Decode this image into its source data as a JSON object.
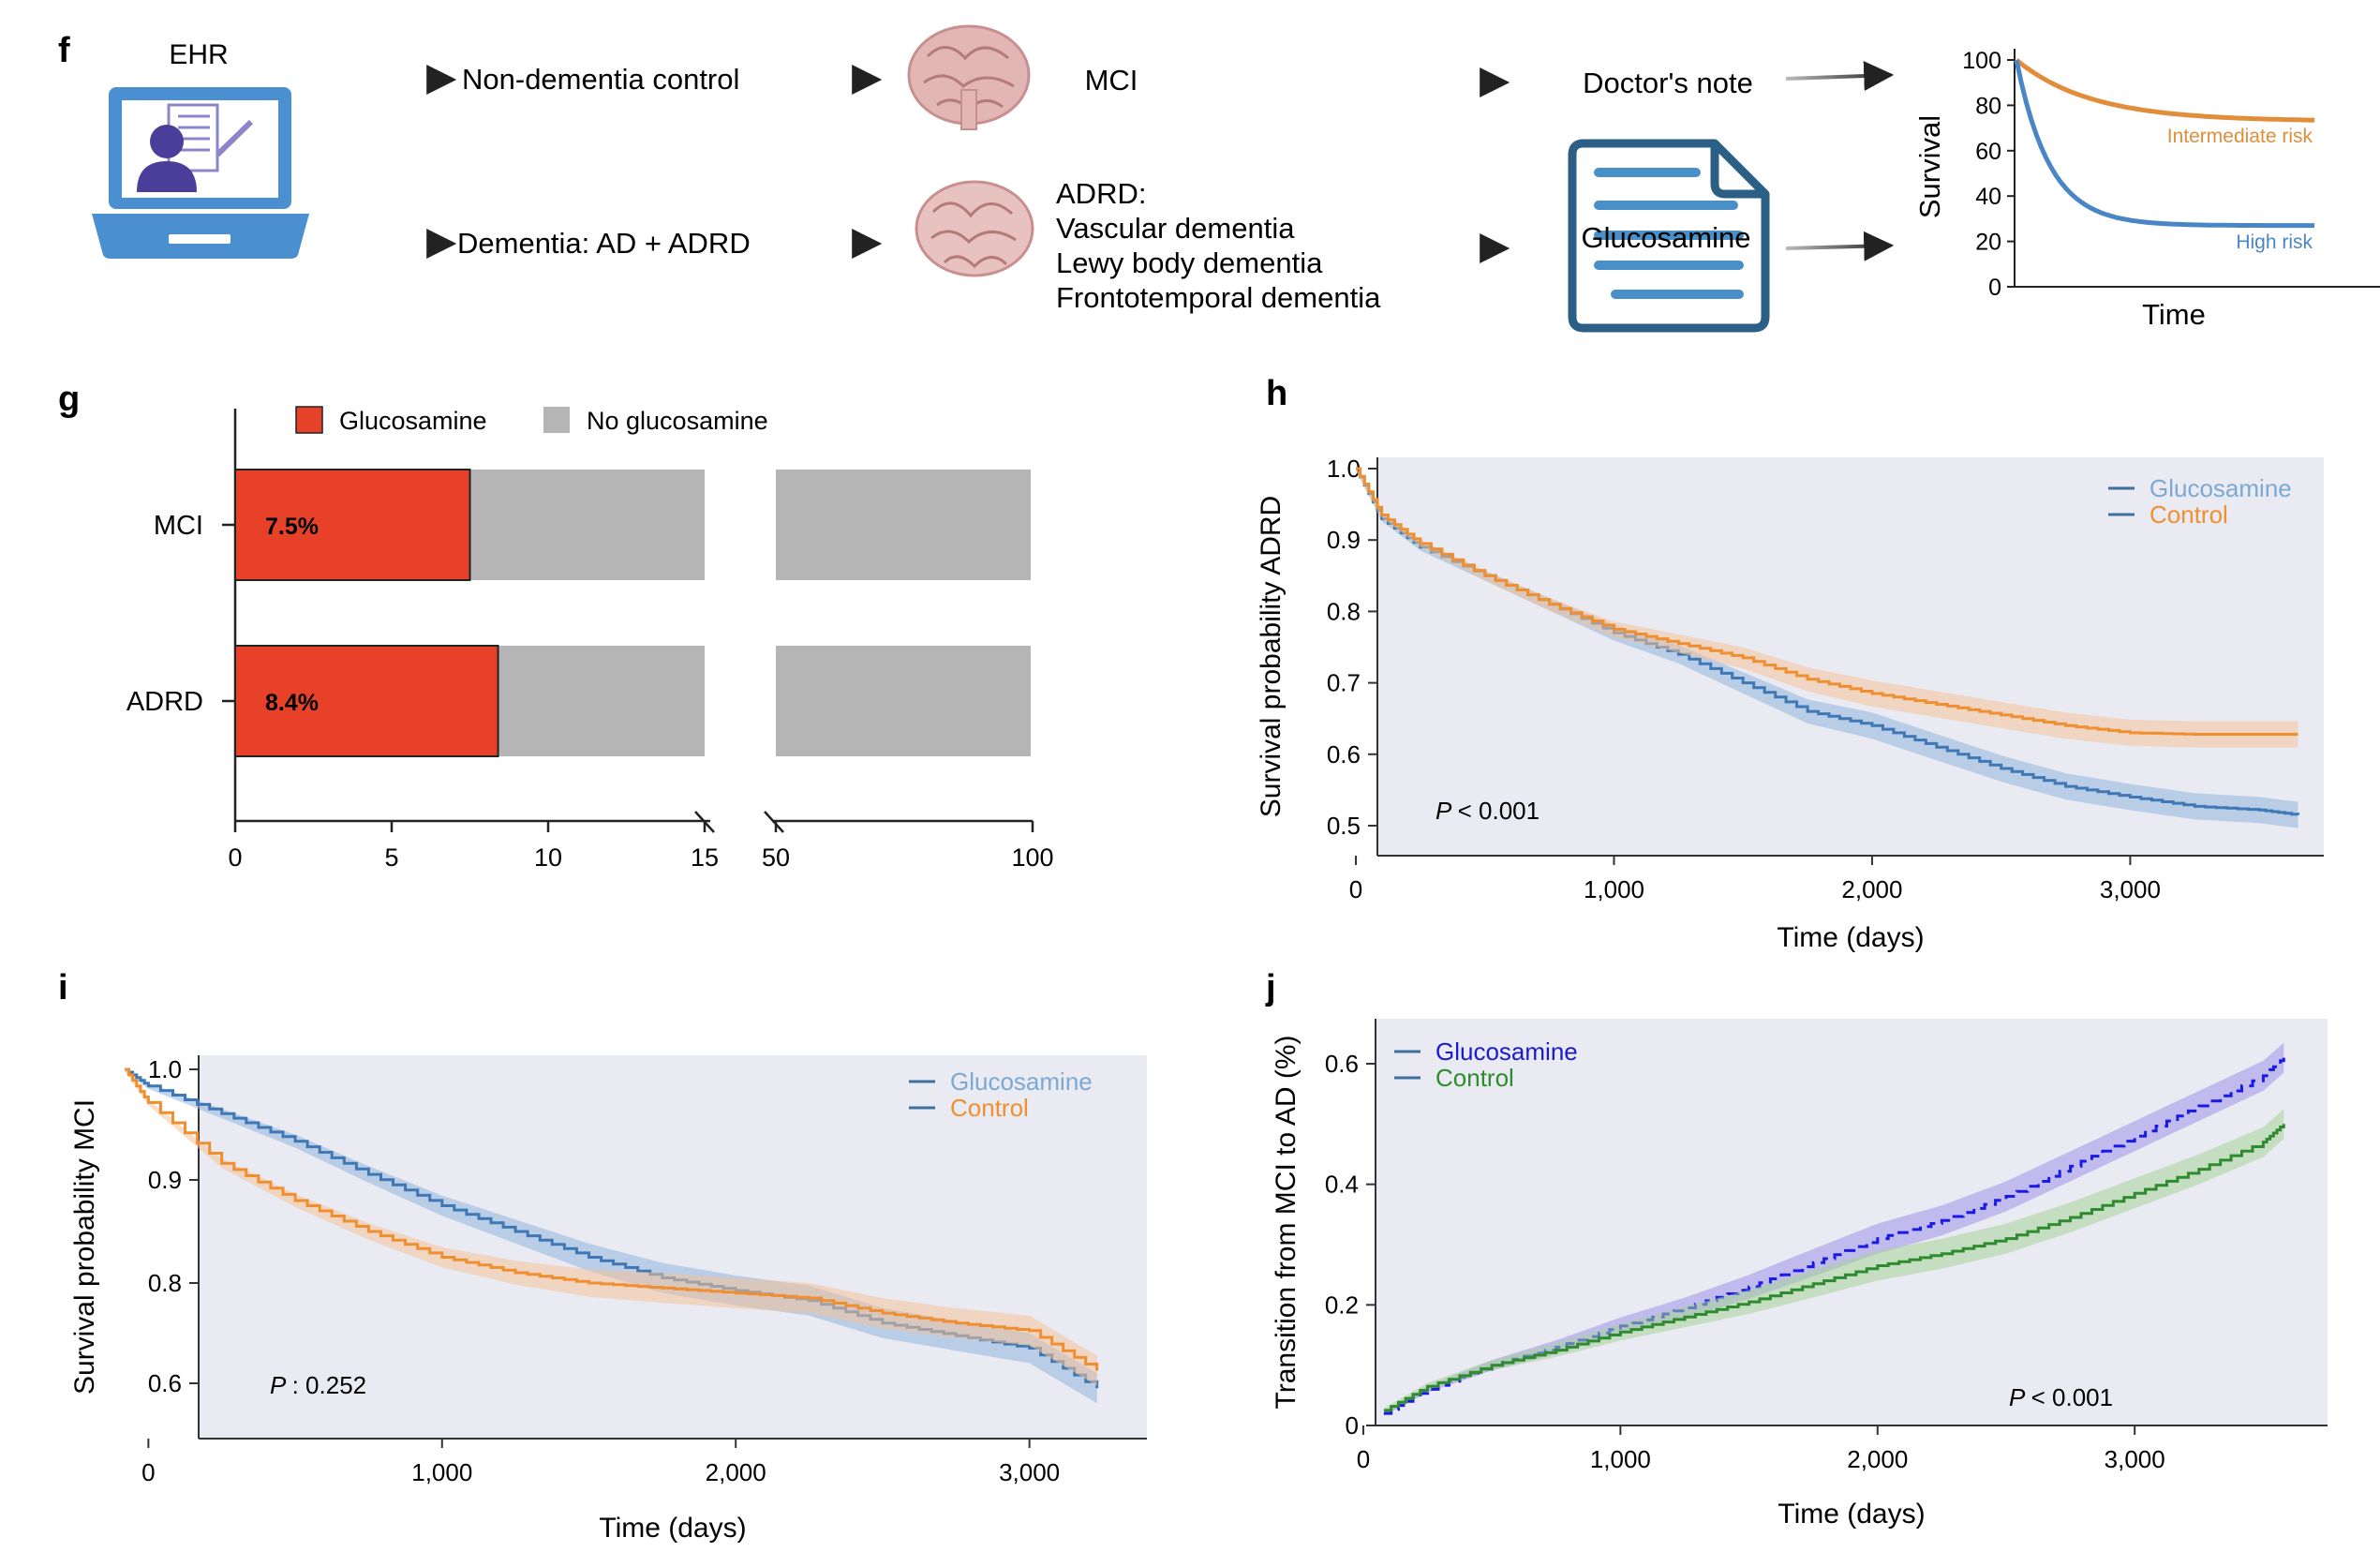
{
  "panel_f": {
    "letter": "f",
    "ehr_label": "EHR",
    "control_label": "Non-dementia control",
    "dementia_label": "Dementia: AD + ADRD",
    "mci_label": "MCI",
    "adrd_heading": "ADRD:",
    "adrd_types": [
      "Vascular dementia",
      "Lewy body dementia",
      "Frontotemporal dementia"
    ],
    "doctors_note_label": "Doctor's note",
    "glucosamine_label": "Glucosamine",
    "colors": {
      "laptop": "#4a8fd0",
      "person": "#4b3d9a",
      "note_outline": "#2b5f86",
      "note_lines": "#4a90c8",
      "brain": "#d9a7a7"
    },
    "mini_chart": {
      "ylabel": "Survival",
      "xlabel": "Time",
      "yticks": [
        "100",
        "80",
        "60",
        "40",
        "20",
        "0"
      ],
      "series": [
        {
          "name": "Intermediate risk",
          "color": "#e08e3a",
          "y_end": 73
        },
        {
          "name": "High risk",
          "color": "#4a86c6",
          "y_end": 27
        }
      ]
    }
  },
  "panel_g": {
    "letter": "g",
    "legend": [
      {
        "label": "Glucosamine",
        "color": "#e8412a"
      },
      {
        "label": "No glucosamine",
        "color": "#b5b5b5"
      }
    ],
    "chart_data": {
      "type": "bar",
      "orientation": "horizontal",
      "categories": [
        "MCI",
        "ADRD"
      ],
      "values": [
        7.5,
        8.4
      ],
      "value_labels": [
        "7.5%",
        "8.4%"
      ],
      "xticks": [
        "0",
        "5",
        "10",
        "15",
        "50",
        "100"
      ],
      "axis_break": [
        15,
        50
      ]
    }
  },
  "panel_h": {
    "letter": "h",
    "chart_data": {
      "type": "line",
      "xlabel": "Time (days)",
      "ylabel": "Survival probability ADRD",
      "xticks": [
        "0",
        "1,000",
        "2,000",
        "3,000"
      ],
      "yticks": [
        "0.5",
        "0.6",
        "0.7",
        "0.8",
        "0.9",
        "1.0"
      ],
      "xlim": [
        -80,
        3750
      ],
      "ylim": [
        0.48,
        1.02
      ],
      "annotation": "< 0.001",
      "legend": [
        {
          "name": "Glucosamine",
          "text_color": "#7ba9d3",
          "line_color": "#3f6f9c"
        },
        {
          "name": "Control",
          "text_color": "#ef8f2f",
          "line_color": "#3f6f9c"
        }
      ],
      "series": [
        {
          "name": "Glucosamine",
          "color": "#3f78b4",
          "band": "#8fb4de",
          "x": [
            0,
            100,
            250,
            500,
            750,
            1000,
            1250,
            1500,
            1750,
            2000,
            2250,
            2500,
            2750,
            3000,
            3250,
            3500,
            3650
          ],
          "y": [
            1.0,
            0.93,
            0.89,
            0.85,
            0.81,
            0.77,
            0.74,
            0.7,
            0.66,
            0.64,
            0.61,
            0.58,
            0.555,
            0.54,
            0.527,
            0.522,
            0.515
          ]
        },
        {
          "name": "Control",
          "color": "#ef8f2f",
          "band": "#f4c29a",
          "x": [
            0,
            100,
            250,
            500,
            750,
            1000,
            1250,
            1500,
            1750,
            2000,
            2250,
            2500,
            2750,
            3000,
            3250,
            3500,
            3650
          ],
          "y": [
            1.0,
            0.935,
            0.895,
            0.85,
            0.81,
            0.775,
            0.755,
            0.735,
            0.705,
            0.685,
            0.67,
            0.655,
            0.64,
            0.63,
            0.628,
            0.628,
            0.628
          ]
        }
      ]
    }
  },
  "panel_i": {
    "letter": "i",
    "chart_data": {
      "type": "line",
      "xlabel": "Time (days)",
      "ylabel": "Survival probability MCI",
      "xticks": [
        "0",
        "1,000",
        "2,000",
        "3,000"
      ],
      "yticks": [
        "0.6",
        "0.8",
        "0.9",
        "1.0"
      ],
      "ytick_values": [
        0.6,
        0.8,
        0.9,
        1.0
      ],
      "xlim": [
        -250,
        3400
      ],
      "annotation": ": 0.252",
      "legend": [
        {
          "name": "Glucosamine",
          "text_color": "#7ba9d3",
          "line_color": "#3f6f9c"
        },
        {
          "name": "Control",
          "text_color": "#ef8f2f",
          "line_color": "#3f6f9c"
        }
      ],
      "series": [
        {
          "name": "Glucosamine",
          "color": "#3f78b4",
          "band": "#8fb4de",
          "x": [
            -80,
            0,
            250,
            500,
            750,
            1000,
            1250,
            1500,
            1750,
            2000,
            2250,
            2500,
            2750,
            3000,
            3230
          ],
          "y": [
            1.0,
            0.985,
            0.96,
            0.935,
            0.905,
            0.875,
            0.85,
            0.825,
            0.805,
            0.785,
            0.765,
            0.72,
            0.695,
            0.67,
            0.59
          ]
        },
        {
          "name": "Control",
          "color": "#ef8f2f",
          "band": "#f4c29a",
          "x": [
            -80,
            0,
            250,
            500,
            750,
            1000,
            1250,
            1500,
            1750,
            2000,
            2250,
            2500,
            2750,
            3000,
            3230
          ],
          "y": [
            1.0,
            0.97,
            0.915,
            0.88,
            0.85,
            0.825,
            0.81,
            0.8,
            0.79,
            0.78,
            0.77,
            0.74,
            0.72,
            0.705,
            0.625
          ]
        }
      ]
    }
  },
  "panel_j": {
    "letter": "j",
    "chart_data": {
      "type": "line",
      "xlabel": "Time (days)",
      "ylabel": "Transition from MCI to AD (%)",
      "xticks": [
        "0",
        "1,000",
        "2,000",
        "3,000"
      ],
      "yticks": [
        "0",
        "0.2",
        "0.4",
        "0.6"
      ],
      "ytick_values": [
        0,
        0.2,
        0.4,
        0.6
      ],
      "xlim": [
        -80,
        3750
      ],
      "annotation": "< 0.001",
      "legend": [
        {
          "name": "Glucosamine",
          "text_color": "#1a1ad0",
          "line_color": "#3f6f9c"
        },
        {
          "name": "Control",
          "text_color": "#2e8b2e",
          "line_color": "#3f6f9c"
        }
      ],
      "series": [
        {
          "name": "Glucosamine",
          "color": "#1a1ae6",
          "band": "#9c94e8",
          "dashed": true,
          "x": [
            80,
            250,
            500,
            750,
            1000,
            1250,
            1500,
            1750,
            2000,
            2250,
            2500,
            2750,
            3000,
            3250,
            3500,
            3580
          ],
          "y": [
            0.02,
            0.06,
            0.1,
            0.13,
            0.165,
            0.195,
            0.23,
            0.27,
            0.31,
            0.34,
            0.38,
            0.43,
            0.48,
            0.53,
            0.58,
            0.61
          ]
        },
        {
          "name": "Control",
          "color": "#2e8b2e",
          "band": "#a6d49a",
          "x": [
            80,
            250,
            500,
            750,
            1000,
            1250,
            1500,
            1750,
            2000,
            2250,
            2500,
            2750,
            3000,
            3250,
            3500,
            3580
          ],
          "y": [
            0.025,
            0.065,
            0.1,
            0.125,
            0.155,
            0.18,
            0.205,
            0.235,
            0.265,
            0.285,
            0.31,
            0.345,
            0.385,
            0.425,
            0.47,
            0.5
          ]
        }
      ]
    }
  }
}
